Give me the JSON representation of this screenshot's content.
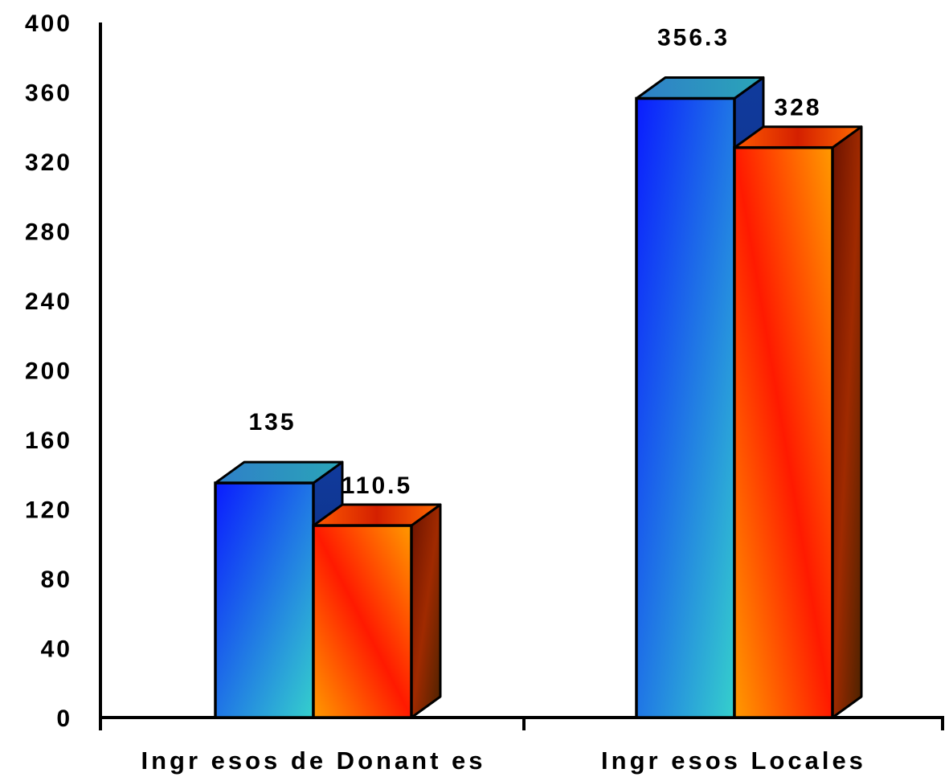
{
  "chart_data": {
    "type": "bar",
    "style": "3d-clustered",
    "categories": [
      "Ingr esos de Donant es",
      "Ingr esos Locales"
    ],
    "series": [
      {
        "values": [
          135,
          356.3
        ],
        "labels": [
          "135",
          "356.3"
        ],
        "colors": {
          "front_start": "#0a1cff",
          "front_end": "#35d0cc",
          "top": "#2a8fbd",
          "side": "#0d2c80"
        }
      },
      {
        "values": [
          110.5,
          328
        ],
        "labels": [
          "110.5",
          "328"
        ],
        "colors": {
          "front_start": "#ff9a00",
          "front_mid": "#ff1a00",
          "front_end": "#ff9a00",
          "top": "#e33b00",
          "side": "#5a1a00"
        }
      }
    ],
    "yticks": [
      "0",
      "40",
      "80",
      "120",
      "160",
      "200",
      "240",
      "280",
      "320",
      "360",
      "400"
    ],
    "ylim": [
      0,
      400
    ],
    "grid": false,
    "legend": "none"
  }
}
